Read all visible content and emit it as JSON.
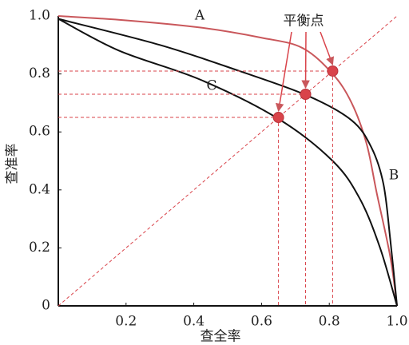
{
  "chart_data": {
    "type": "line",
    "x_label": "查全率",
    "y_label": "查准率",
    "xlim": [
      0,
      1
    ],
    "ylim": [
      0,
      1
    ],
    "xticks": [
      0.2,
      0.4,
      0.6,
      0.8,
      {
        "value": 1,
        "label": "1.0"
      }
    ],
    "yticks": [
      0,
      0.2,
      0.4,
      0.6,
      0.8,
      {
        "value": 1,
        "label": "1.0"
      }
    ],
    "series": [
      {
        "name": "A",
        "color": "#c9575b",
        "x": [
          0,
          0.2,
          0.42,
          0.6,
          0.72,
          0.81,
          0.866,
          0.91,
          0.94,
          0.98,
          1.0
        ],
        "values": [
          1.0,
          0.985,
          0.96,
          0.925,
          0.89,
          0.8,
          0.7,
          0.56,
          0.39,
          0.17,
          0
        ]
      },
      {
        "name": "B",
        "color": "#111111",
        "x": [
          0,
          0.3,
          0.535,
          0.736,
          0.866,
          0.925,
          0.96,
          0.98,
          1.0
        ],
        "values": [
          0.99,
          0.9,
          0.81,
          0.725,
          0.64,
          0.545,
          0.42,
          0.23,
          0
        ]
      },
      {
        "name": "C",
        "color": "#111111",
        "x": [
          0,
          0.18,
          0.42,
          0.65,
          0.81,
          0.89,
          0.95,
          1.0
        ],
        "values": [
          0.99,
          0.88,
          0.78,
          0.645,
          0.5,
          0.37,
          0.2,
          0
        ]
      }
    ],
    "break_even": {
      "label": "平衡点",
      "color": "#d9434a",
      "x": [
        0.65,
        0.73,
        0.81
      ],
      "values": [
        0.65,
        0.73,
        0.81
      ]
    }
  }
}
